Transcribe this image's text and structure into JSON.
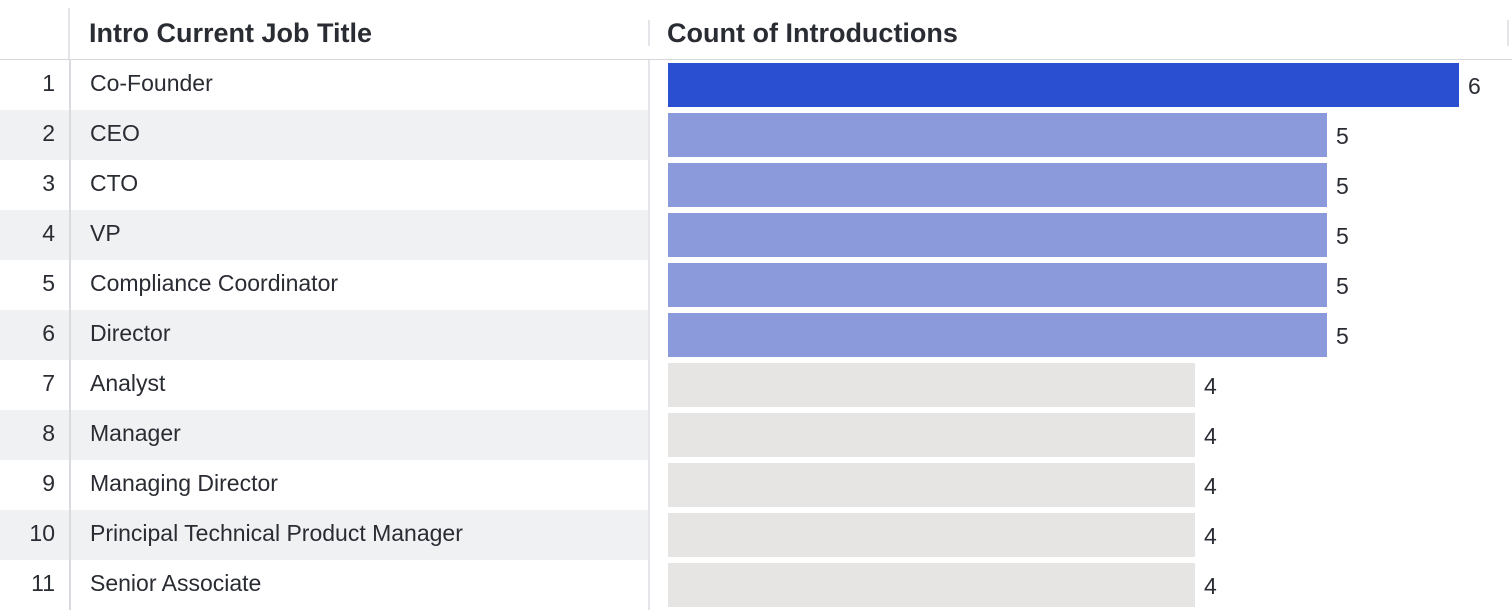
{
  "table": {
    "columns": {
      "title": "Intro Current Job Title",
      "count": "Count of Introductions"
    },
    "rows": [
      {
        "index": "1",
        "title": "Co-Founder",
        "count": 6,
        "count_label": "6",
        "tier": "top"
      },
      {
        "index": "2",
        "title": "CEO",
        "count": 5,
        "count_label": "5",
        "tier": "mid"
      },
      {
        "index": "3",
        "title": "CTO",
        "count": 5,
        "count_label": "5",
        "tier": "mid"
      },
      {
        "index": "4",
        "title": "VP",
        "count": 5,
        "count_label": "5",
        "tier": "mid"
      },
      {
        "index": "5",
        "title": "Compliance Coordinator",
        "count": 5,
        "count_label": "5",
        "tier": "mid"
      },
      {
        "index": "6",
        "title": "Director",
        "count": 5,
        "count_label": "5",
        "tier": "mid"
      },
      {
        "index": "7",
        "title": "Analyst",
        "count": 4,
        "count_label": "4",
        "tier": "low"
      },
      {
        "index": "8",
        "title": "Manager",
        "count": 4,
        "count_label": "4",
        "tier": "low"
      },
      {
        "index": "9",
        "title": "Managing Director",
        "count": 4,
        "count_label": "4",
        "tier": "low"
      },
      {
        "index": "10",
        "title": "Principal Technical Product Manager",
        "count": 4,
        "count_label": "4",
        "tier": "low"
      },
      {
        "index": "11",
        "title": "Senior Associate",
        "count": 4,
        "count_label": "4",
        "tier": "low"
      }
    ]
  },
  "colors": {
    "top": "#2a4fd0",
    "mid": "#8a9adb",
    "low": "#e6e5e4"
  },
  "chart_data": {
    "type": "bar",
    "categories": [
      "Co-Founder",
      "CEO",
      "CTO",
      "VP",
      "Compliance Coordinator",
      "Director",
      "Analyst",
      "Manager",
      "Managing Director",
      "Principal Technical Product Manager",
      "Senior Associate"
    ],
    "values": [
      6,
      5,
      5,
      5,
      5,
      5,
      4,
      4,
      4,
      4,
      4
    ],
    "xlabel": "Count of Introductions",
    "ylabel": "Intro Current Job Title",
    "xlim": [
      0,
      6
    ]
  }
}
